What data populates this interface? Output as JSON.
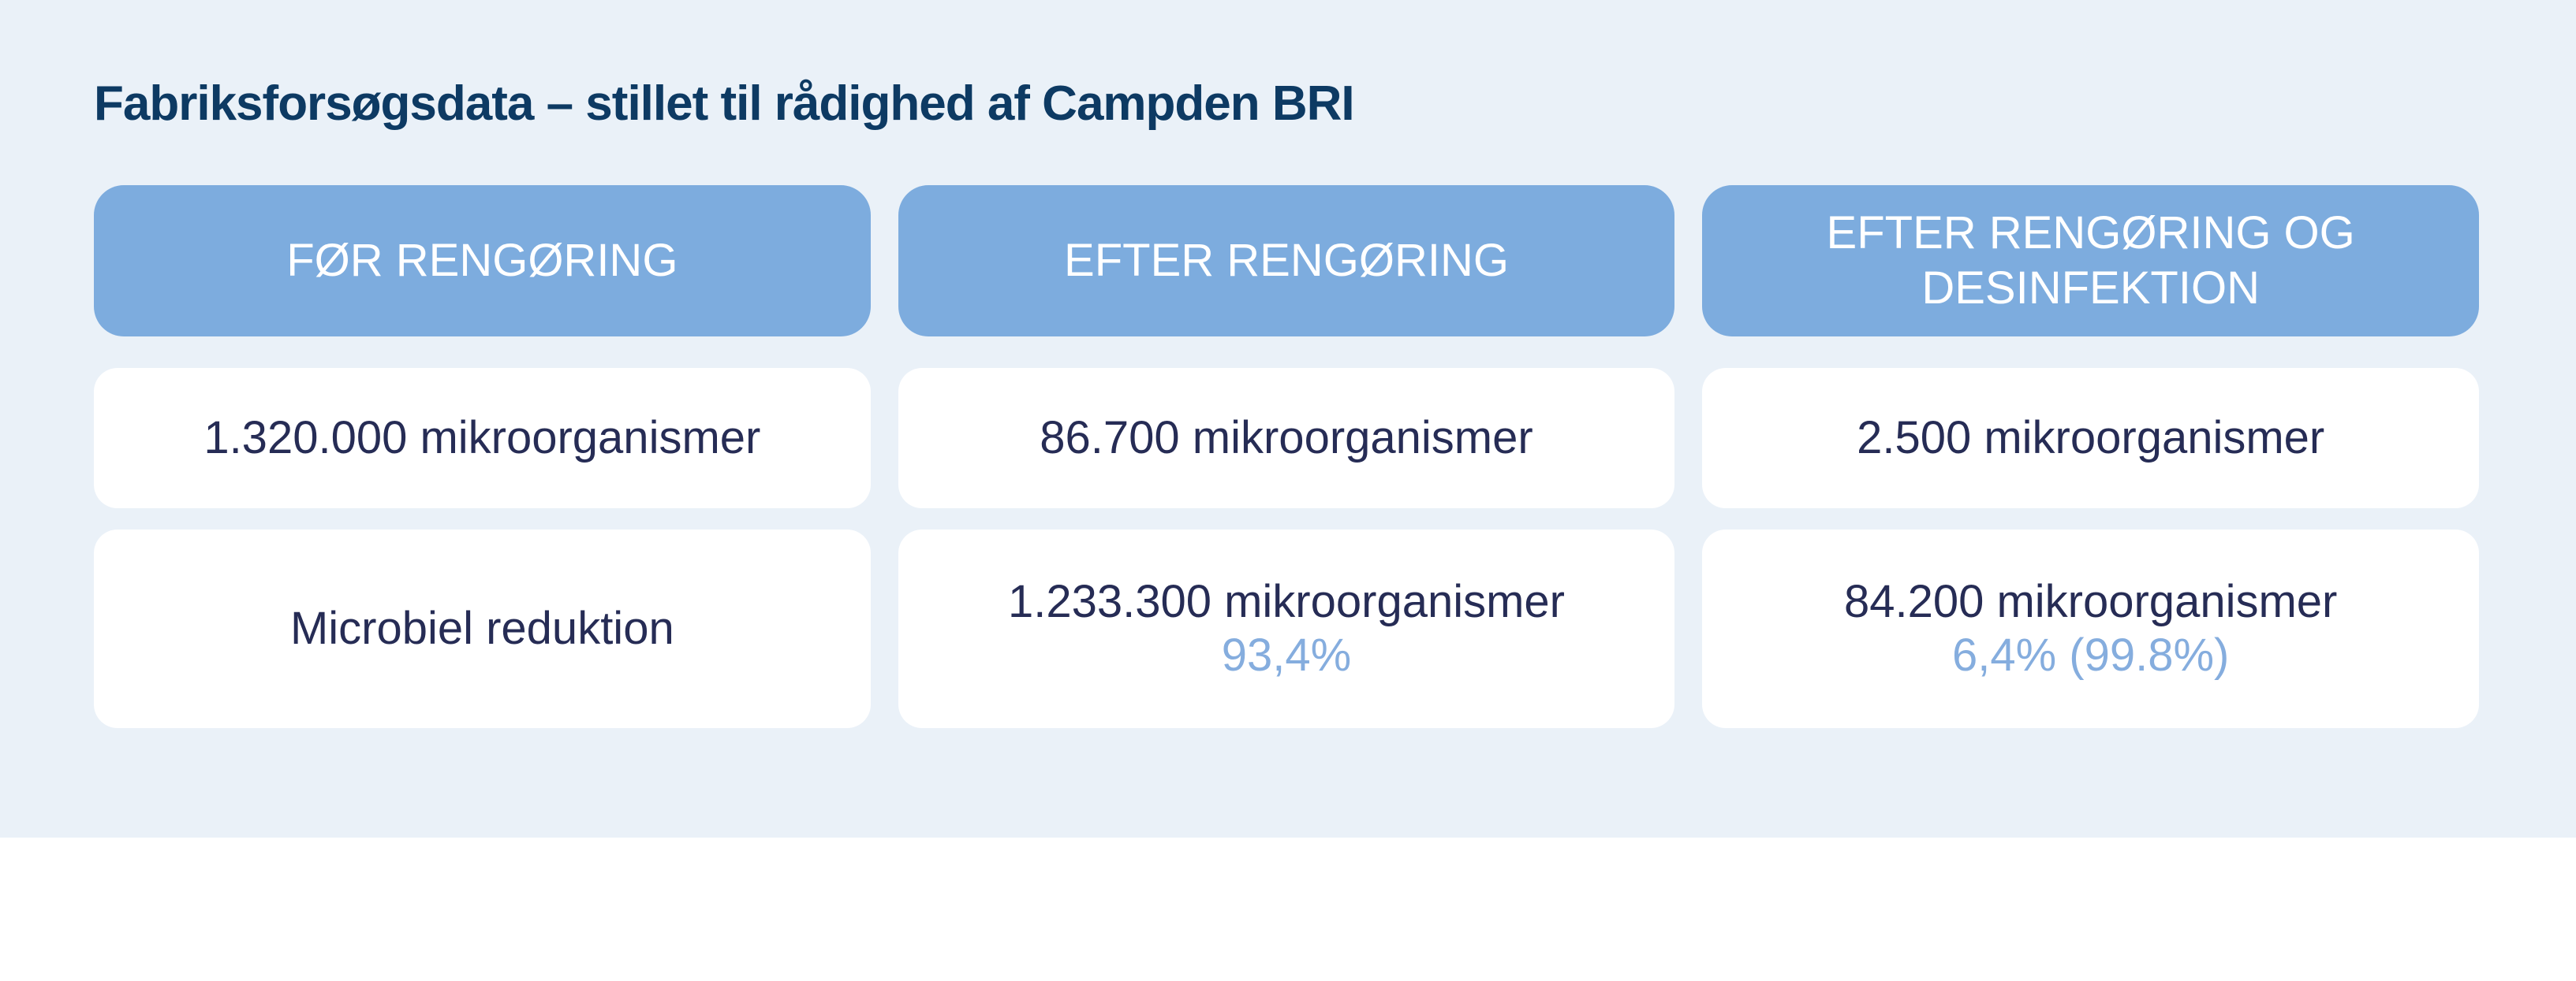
{
  "header": {
    "title": "Fabriksforsøgsdata – stillet til rådighed af Campden BRI"
  },
  "table": {
    "columns": [
      {
        "header": "FØR RENGØRING",
        "count": "1.320.000 mikroorganismer",
        "reduction_main": "Microbiel reduktion",
        "reduction_sub": ""
      },
      {
        "header": "EFTER RENGØRING",
        "count": "86.700 mikroorganismer",
        "reduction_main": "1.233.300 mikroorganismer",
        "reduction_sub": "93,4%"
      },
      {
        "header": "EFTER RENGØRING OG DESINFEKTION",
        "count": "2.500 mikroorganismer",
        "reduction_main": "84.200 mikroorganismer",
        "reduction_sub": "6,4% (99.8%)"
      }
    ]
  },
  "colors": {
    "panel_background": "#EAF1F8",
    "header_pill_fill": "#7DACDE",
    "header_pill_text": "#FFFFFF",
    "title_text": "#0D3A63",
    "card_background": "#FFFFFF",
    "card_text": "#262C55",
    "accent_percent_text": "#85ADDE"
  },
  "chart_data": {
    "type": "table",
    "title": "Fabriksforsøgsdata – stillet til rådighed af Campden BRI",
    "columns": [
      "FØR RENGØRING",
      "EFTER RENGØRING",
      "EFTER RENGØRING OG DESINFEKTION"
    ],
    "rows": [
      [
        "1.320.000 mikroorganismer",
        "86.700 mikroorganismer",
        "2.500 mikroorganismer"
      ],
      [
        "Microbiel reduktion",
        "1.233.300 mikroorganismer 93,4%",
        "84.200 mikroorganismer 6,4% (99.8%)"
      ]
    ],
    "values": {
      "microorganisms_before_cleaning": 1320000,
      "microorganisms_after_cleaning": 86700,
      "microorganisms_after_cleaning_and_disinfection": 2500,
      "microbial_reduction_after_cleaning": 1233300,
      "microbial_reduction_after_cleaning_percent": 93.4,
      "microbial_reduction_after_cleaning_and_disinfection": 84200,
      "microbial_reduction_after_disinfection_step_percent": 6.4,
      "microbial_reduction_total_percent": 99.8
    }
  }
}
